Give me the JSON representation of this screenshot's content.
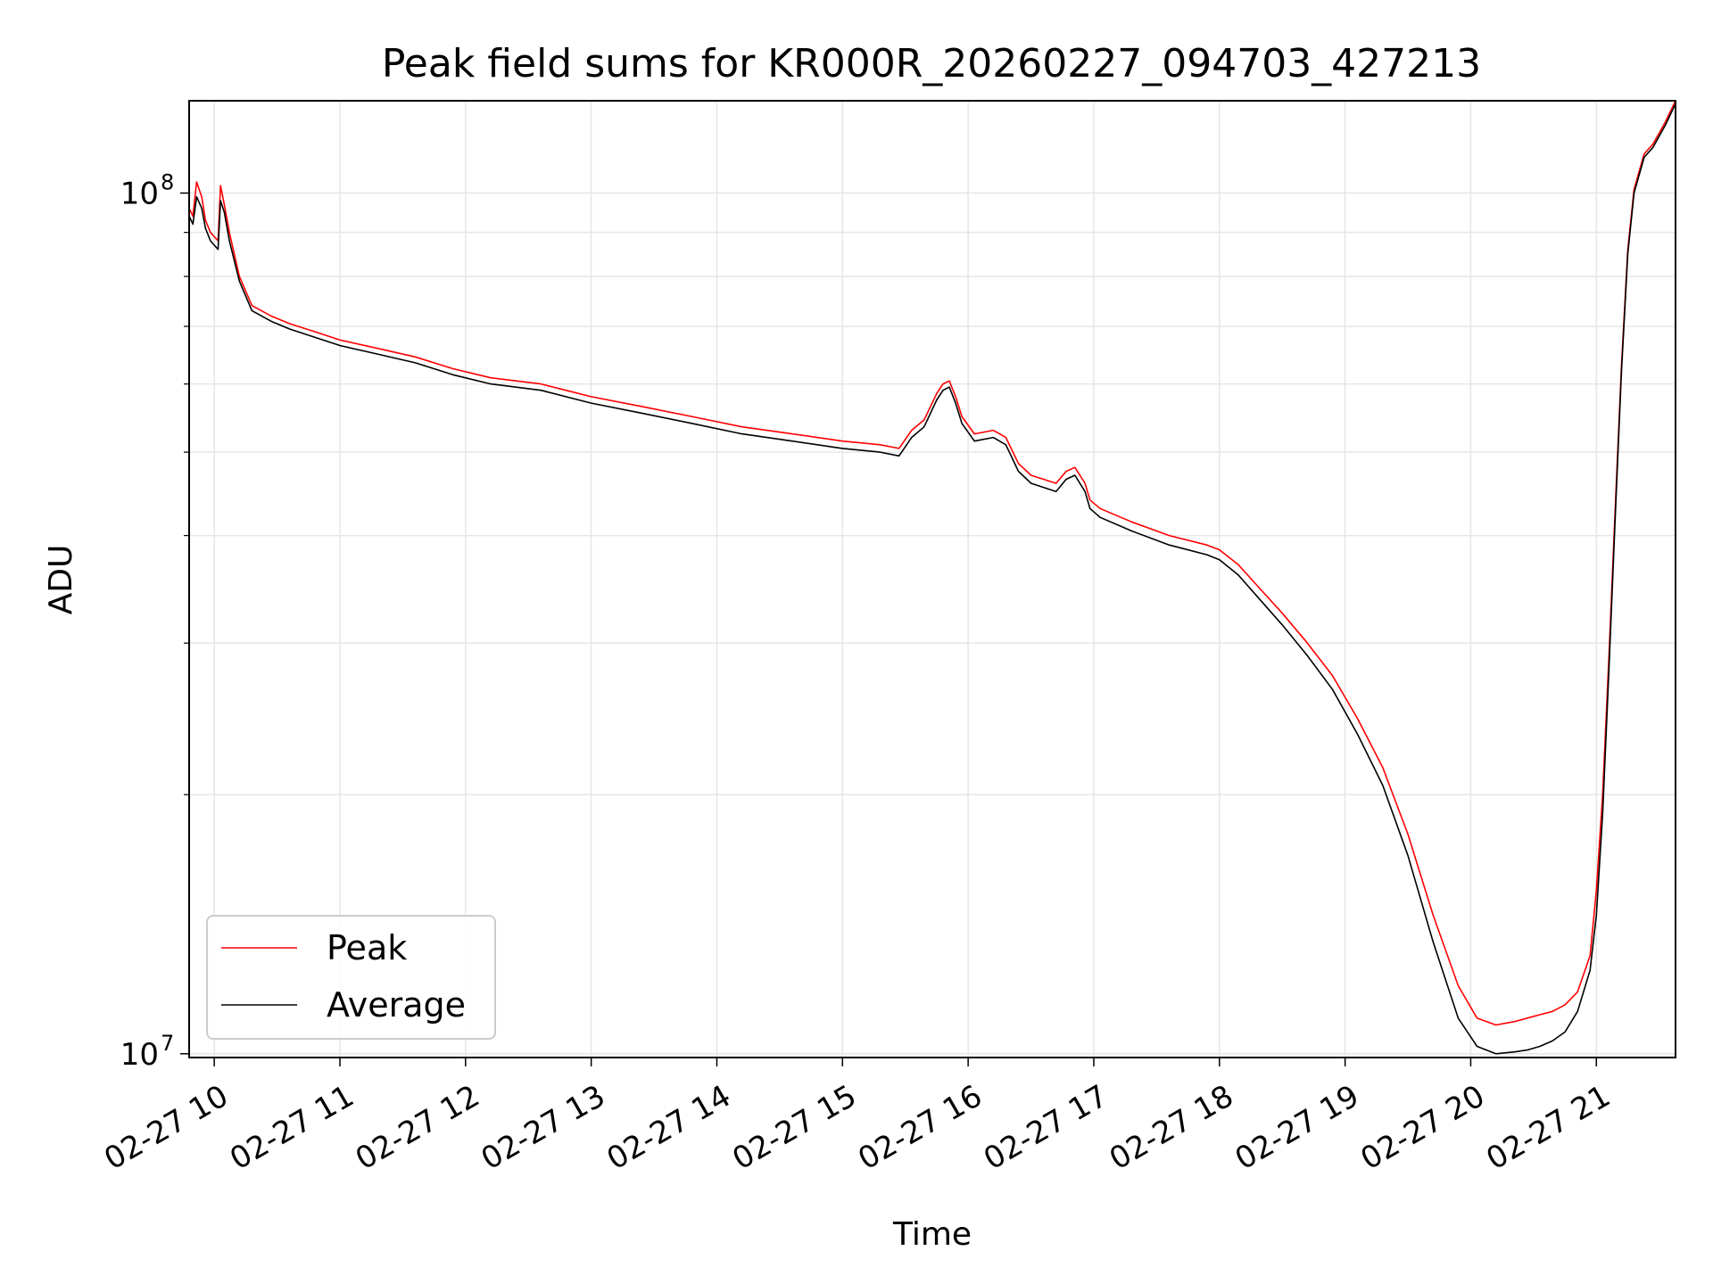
{
  "chart_data": {
    "type": "line",
    "title": "Peak field sums for KR000R_20260227_094703_427213",
    "xlabel": "Time",
    "ylabel": "ADU",
    "yscale": "log",
    "ylim": [
      9900000,
      128000000
    ],
    "xlim_hours": [
      9.8,
      21.63
    ],
    "grid": true,
    "legend": {
      "position": "lower-left",
      "entries": [
        "Peak",
        "Average"
      ]
    },
    "x_ticks": [
      "02-27 10",
      "02-27 11",
      "02-27 12",
      "02-27 13",
      "02-27 14",
      "02-27 15",
      "02-27 16",
      "02-27 17",
      "02-27 18",
      "02-27 19",
      "02-27 20",
      "02-27 21"
    ],
    "x_tick_hours": [
      10,
      11,
      12,
      13,
      14,
      15,
      16,
      17,
      18,
      19,
      20,
      21
    ],
    "y_ticks": [
      {
        "value": 10000000,
        "base": "10",
        "exp": "7"
      },
      {
        "value": 100000000,
        "base": "10",
        "exp": "8"
      }
    ],
    "series": [
      {
        "name": "Average",
        "color": "#000000",
        "x_hours": [
          9.8,
          9.83,
          9.86,
          9.9,
          9.93,
          9.97,
          10.03,
          10.05,
          10.08,
          10.12,
          10.2,
          10.3,
          10.45,
          10.6,
          10.8,
          11.0,
          11.3,
          11.6,
          11.9,
          12.2,
          12.6,
          13.0,
          13.4,
          13.8,
          14.2,
          14.6,
          15.0,
          15.3,
          15.45,
          15.55,
          15.65,
          15.75,
          15.8,
          15.85,
          15.9,
          15.95,
          16.05,
          16.2,
          16.3,
          16.4,
          16.5,
          16.6,
          16.7,
          16.78,
          16.85,
          16.93,
          16.97,
          17.05,
          17.3,
          17.6,
          17.9,
          18.0,
          18.15,
          18.3,
          18.5,
          18.7,
          18.9,
          19.1,
          19.3,
          19.5,
          19.7,
          19.9,
          20.05,
          20.2,
          20.35,
          20.45,
          20.55,
          20.65,
          20.75,
          20.85,
          20.95,
          21.0,
          21.05,
          21.1,
          21.15,
          21.2,
          21.25,
          21.3,
          21.38,
          21.45,
          21.55,
          21.63
        ],
        "values": [
          94000000,
          92000000,
          99000000,
          96000000,
          91000000,
          88000000,
          86000000,
          98000000,
          95000000,
          88000000,
          79000000,
          73000000,
          71000000,
          69500000,
          68000000,
          66500000,
          65000000,
          63500000,
          61500000,
          60000000,
          59000000,
          57000000,
          55500000,
          54000000,
          52500000,
          51500000,
          50500000,
          50000000,
          49500000,
          52000000,
          53500000,
          57500000,
          59000000,
          59500000,
          57000000,
          54000000,
          51500000,
          52000000,
          51000000,
          47500000,
          46000000,
          45500000,
          45000000,
          46500000,
          47000000,
          45000000,
          43000000,
          42000000,
          40500000,
          39000000,
          38000000,
          37500000,
          36000000,
          34000000,
          31500000,
          29000000,
          26500000,
          23500000,
          20500000,
          17000000,
          13500000,
          11000000,
          10200000,
          10000000,
          10050000,
          10100000,
          10200000,
          10350000,
          10600000,
          11200000,
          12500000,
          14500000,
          19000000,
          28000000,
          42000000,
          62000000,
          85000000,
          100000000,
          110000000,
          113000000,
          120000000,
          127000000
        ]
      },
      {
        "name": "Peak",
        "color": "#ff0000",
        "x_hours": [
          9.8,
          9.83,
          9.86,
          9.9,
          9.93,
          9.97,
          10.03,
          10.05,
          10.08,
          10.12,
          10.2,
          10.3,
          10.45,
          10.6,
          10.8,
          11.0,
          11.3,
          11.6,
          11.9,
          12.2,
          12.6,
          13.0,
          13.4,
          13.8,
          14.2,
          14.6,
          15.0,
          15.3,
          15.45,
          15.55,
          15.65,
          15.75,
          15.8,
          15.85,
          15.9,
          15.95,
          16.05,
          16.2,
          16.3,
          16.4,
          16.5,
          16.6,
          16.7,
          16.78,
          16.85,
          16.93,
          16.97,
          17.05,
          17.3,
          17.6,
          17.9,
          18.0,
          18.15,
          18.3,
          18.5,
          18.7,
          18.9,
          19.1,
          19.3,
          19.5,
          19.7,
          19.9,
          20.05,
          20.2,
          20.35,
          20.45,
          20.55,
          20.65,
          20.75,
          20.85,
          20.95,
          21.0,
          21.05,
          21.1,
          21.15,
          21.2,
          21.25,
          21.3,
          21.38,
          21.45,
          21.55,
          21.63
        ],
        "values": [
          96000000,
          94000000,
          103000000,
          99000000,
          93000000,
          90000000,
          88000000,
          102000000,
          97000000,
          90000000,
          80000000,
          74000000,
          72000000,
          70500000,
          69000000,
          67500000,
          66000000,
          64500000,
          62500000,
          61000000,
          60000000,
          58000000,
          56500000,
          55000000,
          53500000,
          52500000,
          51500000,
          51000000,
          50500000,
          53000000,
          54500000,
          58500000,
          60000000,
          60500000,
          58000000,
          55000000,
          52500000,
          53000000,
          52000000,
          48500000,
          47000000,
          46500000,
          46000000,
          47500000,
          48000000,
          46000000,
          44000000,
          43000000,
          41500000,
          40000000,
          39000000,
          38500000,
          37000000,
          35000000,
          32500000,
          30000000,
          27500000,
          24500000,
          21500000,
          18000000,
          14500000,
          12000000,
          11000000,
          10800000,
          10900000,
          11000000,
          11100000,
          11200000,
          11400000,
          11800000,
          13000000,
          15500000,
          20000000,
          29000000,
          43000000,
          63000000,
          86000000,
          101000000,
          111000000,
          114000000,
          121000000,
          128000000
        ]
      }
    ]
  }
}
